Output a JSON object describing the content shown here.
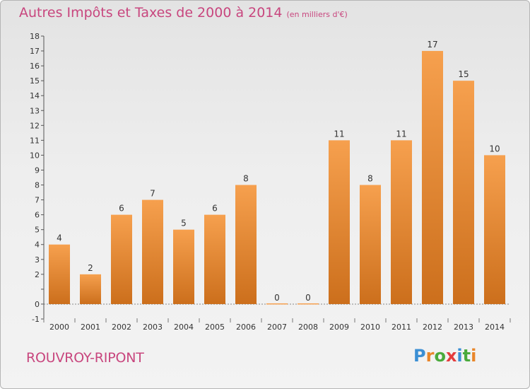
{
  "title": "Autres Impôts et Taxes de 2000 à 2014",
  "unit": "(en milliers d'€)",
  "town": "ROUVROY-RIPONT",
  "logo": {
    "text": "Proxiti",
    "letters": [
      "P",
      "r",
      "o",
      "x",
      "i",
      "t",
      "i"
    ],
    "colors": [
      "#3b8fd4",
      "#e8862a",
      "#4aaa3c",
      "#e43c3c",
      "#3b8fd4",
      "#4aaa3c",
      "#e8862a"
    ]
  },
  "colors": {
    "title": "#c8467e",
    "bar_top": "#f6a04e",
    "bar_bottom": "#cc6f1c"
  },
  "chart_data": {
    "type": "bar",
    "categories": [
      "2000",
      "2001",
      "2002",
      "2003",
      "2004",
      "2005",
      "2006",
      "2007",
      "2008",
      "2009",
      "2010",
      "2011",
      "2012",
      "2013",
      "2014"
    ],
    "values": [
      4,
      2,
      6,
      7,
      5,
      6,
      8,
      0,
      0,
      11,
      8,
      11,
      17,
      15,
      10
    ],
    "xlabel": "",
    "ylabel": "",
    "ylim": [
      -1,
      18
    ],
    "yticks": [
      -1,
      0,
      1,
      2,
      3,
      4,
      5,
      6,
      7,
      8,
      9,
      10,
      11,
      12,
      13,
      14,
      15,
      16,
      17,
      18
    ],
    "ytick_labels": [
      "-1",
      "0",
      "",
      "2",
      "3",
      "4",
      "5",
      "6",
      "7",
      "8",
      "9",
      "10",
      "11",
      "12",
      "13",
      "14",
      "15",
      "16",
      "17",
      "18"
    ],
    "grid": false,
    "legend": "none"
  }
}
